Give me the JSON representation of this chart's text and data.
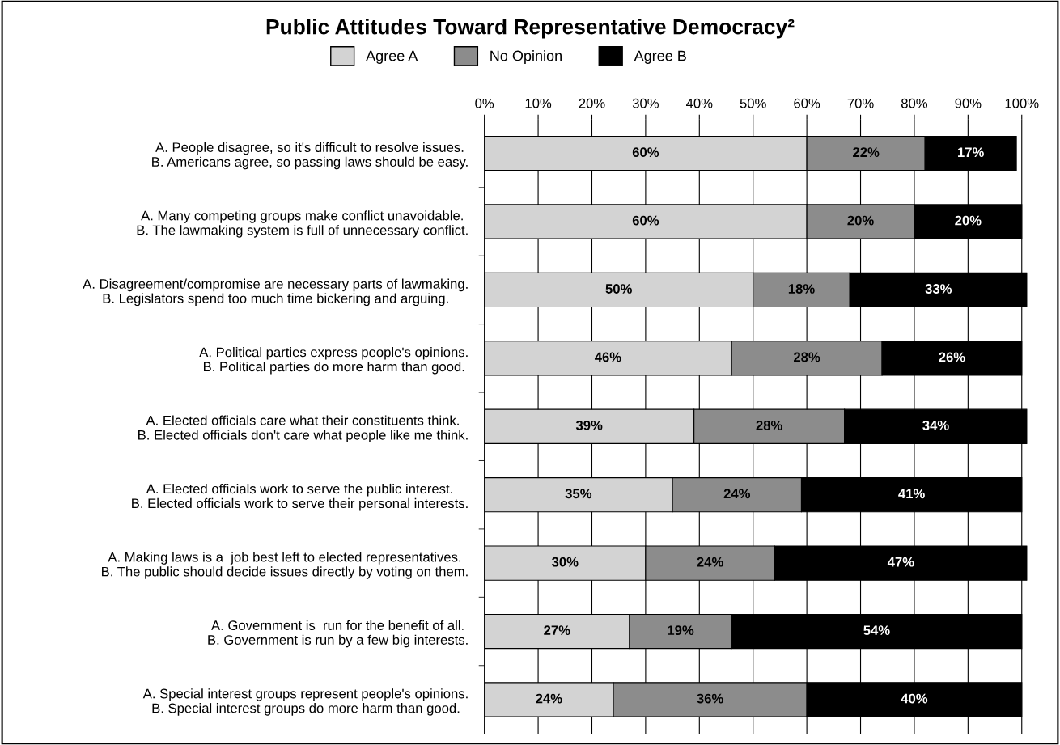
{
  "chart_data": {
    "type": "bar",
    "orientation": "horizontal",
    "stacked": true,
    "title": "Public Attitudes Toward Representative Democracy²",
    "categories": [
      "A. People disagree, so it's difficult to resolve issues.\nB. Americans agree, so passing laws should be easy.",
      "A. Many competing groups make conflict unavoidable.\nB. The lawmaking system is full of unnecessary conflict.",
      "A. Disagreement/compromise are necessary parts of lawmaking.\nB. Legislators spend too much time bickering and arguing.",
      "A. Political parties express people's opinions.\nB. Political parties do more harm than good.",
      "A. Elected officials care what their constituents think.\nB. Elected officials don't care what people like me think.",
      "A. Elected officials work to serve the public interest.\nB. Elected officials work to serve their personal interests.",
      "A. Making laws is a  job best left to elected representatives.\nB. The public should decide issues directly by voting on them.",
      "A. Government is  run for the benefit of all.\nB. Government is run by a few big interests.",
      "A. Special interest groups represent people's opinions.\nB. Special interest groups do more harm than good."
    ],
    "series": [
      {
        "name": "Agree A",
        "color": "#d3d3d3",
        "values": [
          60,
          60,
          50,
          46,
          39,
          35,
          30,
          27,
          24
        ],
        "value_labels": [
          "60%",
          "60%",
          "50%",
          "46%",
          "39%",
          "35%",
          "30%",
          "27%",
          "24%"
        ]
      },
      {
        "name": "No Opinion",
        "color": "#8c8c8c",
        "values": [
          22,
          20,
          18,
          28,
          28,
          24,
          24,
          19,
          36
        ],
        "value_labels": [
          "22%",
          "20%",
          "18%",
          "28%",
          "28%",
          "24%",
          "24%",
          "19%",
          "36%"
        ]
      },
      {
        "name": "Agree B",
        "color": "#000000",
        "values": [
          17,
          20,
          33,
          26,
          34,
          41,
          47,
          54,
          40
        ],
        "value_labels": [
          "17%",
          "20%",
          "33%",
          "26%",
          "34%",
          "41%",
          "47%",
          "54%",
          "40%"
        ]
      }
    ],
    "xlim": [
      0,
      101
    ],
    "xticks": [
      {
        "value": 0,
        "label": "0%"
      },
      {
        "value": 10,
        "label": "10%"
      },
      {
        "value": 20,
        "label": "20%"
      },
      {
        "value": 30,
        "label": "30%"
      },
      {
        "value": 40,
        "label": "40%"
      },
      {
        "value": 50,
        "label": "50%"
      },
      {
        "value": 60,
        "label": "60%"
      },
      {
        "value": 70,
        "label": "70%"
      },
      {
        "value": 80,
        "label": "80%"
      },
      {
        "value": 90,
        "label": "90%"
      },
      {
        "value": 100,
        "label": "100%"
      }
    ],
    "grid": "x",
    "legend": "top"
  }
}
